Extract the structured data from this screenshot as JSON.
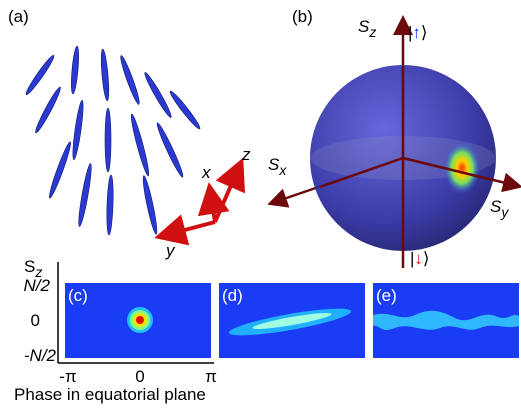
{
  "panel_a": {
    "label": "(a)",
    "axes": {
      "z": "z",
      "x": "x",
      "y": "y"
    }
  },
  "panel_b": {
    "label": "(b)",
    "sz": {
      "symbol": "S",
      "subscript": "z"
    },
    "sx": {
      "symbol": "S",
      "subscript": "x"
    },
    "sy": {
      "symbol": "S",
      "subscript": "y"
    },
    "ket_up": {
      "open": "|",
      "arrow": "↑",
      "close": "⟩"
    },
    "ket_down": {
      "open": "|",
      "arrow": "↓",
      "close": "⟩"
    }
  },
  "bottom": {
    "y_axis": {
      "symbol": "S",
      "subscript": "z"
    },
    "yticks": [
      "N/2",
      "0",
      "-N/2"
    ],
    "xticks": [
      "-π",
      "0",
      "π"
    ],
    "x_label": "Phase in equatorial plane",
    "panels": [
      "(c)",
      "(d)",
      "(e)"
    ]
  }
}
